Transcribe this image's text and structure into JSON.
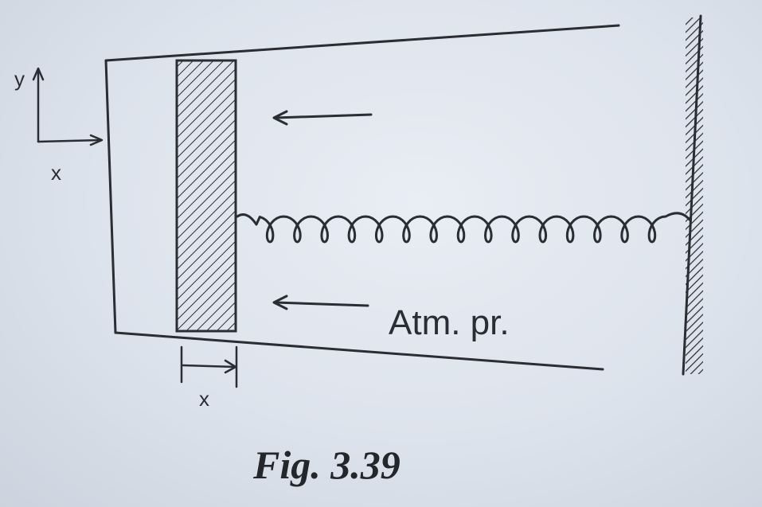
{
  "diagram": {
    "axis_y_label": "y",
    "axis_x_label": "x",
    "displacement_label": "x",
    "pressure_label": "Atm. pr."
  },
  "caption": "Fig. 3.39",
  "colors": {
    "ink": "#2a2d33",
    "paper": "#e3e8ef"
  }
}
